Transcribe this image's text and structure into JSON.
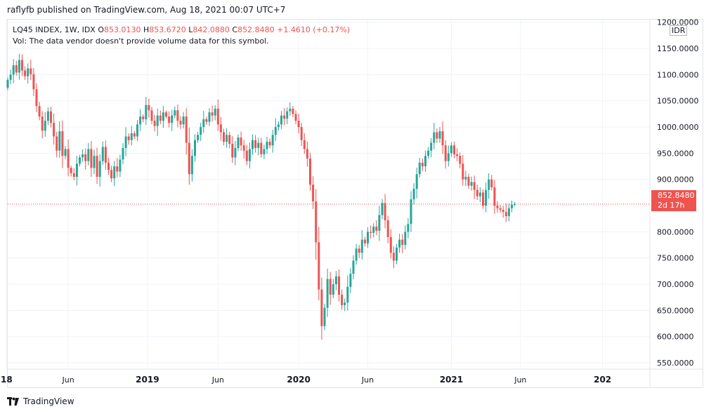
{
  "header": {
    "published_text": "raflyfb published on TradingView.com, Aug 18, 2021 00:07 UTC+7"
  },
  "legend": {
    "symbol": "LQ45 INDEX, 1W, IDX",
    "o_label": "O",
    "o_value": "853.0130",
    "h_label": "H",
    "h_value": "853.6720",
    "l_label": "L",
    "l_value": "842.0880",
    "c_label": "C",
    "c_value": "852.8480",
    "change": "+1.4610 (+0.17%)",
    "volume_note": "Vol: The data vendor doesn't provide volume data for this symbol."
  },
  "price_axis": {
    "currency": "IDR"
  },
  "last_price": {
    "value": "852.8480",
    "countdown": "2d 17h"
  },
  "footer": {
    "brand": "TradingView"
  },
  "colors": {
    "up": "#26a69a",
    "down": "#ef5350",
    "grid": "#f0f3fa",
    "text": "#131722"
  },
  "chart_data": {
    "type": "candlestick",
    "title": "LQ45 INDEX, 1W, IDX",
    "xlabel": "",
    "ylabel": "",
    "ylim": [
      538,
      1205
    ],
    "y_ticks": [
      1200,
      1150,
      1100,
      1050,
      1000,
      950,
      900,
      850,
      800,
      750,
      700,
      650,
      600,
      550
    ],
    "y_tick_labels": [
      "1200.0000",
      "1150.0000",
      "1100.0000",
      "1050.0000",
      "1000.0000",
      "950.0000",
      "900.0000",
      "850.0000",
      "800.0000",
      "750.0000",
      "700.0000",
      "650.0000",
      "600.0000",
      "550.0000"
    ],
    "x_ticks": [
      {
        "index": -0.5,
        "label": "18"
      },
      {
        "index": 21,
        "label": "Jun"
      },
      {
        "index": 48.5,
        "label": "2019"
      },
      {
        "index": 73,
        "label": "Jun"
      },
      {
        "index": 101,
        "label": "2020"
      },
      {
        "index": 125,
        "label": "Jun"
      },
      {
        "index": 154,
        "label": "2021"
      },
      {
        "index": 178,
        "label": "Jun"
      },
      {
        "index": 206.5,
        "label": "202"
      }
    ],
    "last_close": 852.848,
    "grid": true,
    "closes": [
      1090,
      1100,
      1118,
      1104,
      1128,
      1108,
      1097,
      1112,
      1101,
      1072,
      1040,
      1020,
      993,
      1012,
      1030,
      1008,
      982,
      955,
      992,
      945,
      958,
      922,
      912,
      905,
      930,
      942,
      948,
      935,
      958,
      922,
      945,
      905,
      935,
      962,
      932,
      918,
      902,
      925,
      915,
      938,
      960,
      982,
      975,
      988,
      982,
      1005,
      1020,
      1015,
      1042,
      1032,
      1012,
      1002,
      1022,
      1012,
      1028,
      1020,
      1008,
      1022,
      1032,
      1012,
      1005,
      1020,
      970,
      910,
      945,
      975,
      985,
      1000,
      1015,
      1010,
      1028,
      1022,
      1035,
      1005,
      990,
      972,
      985,
      968,
      942,
      960,
      980,
      965,
      955,
      935,
      958,
      975,
      960,
      970,
      948,
      958,
      972,
      965,
      985,
      1000,
      1005,
      1022,
      1016,
      1030,
      1035,
      1025,
      1012,
      1000,
      975,
      958,
      940,
      890,
      858,
      780,
      690,
      620,
      655,
      710,
      680,
      700,
      715,
      680,
      660,
      665,
      695,
      720,
      745,
      768,
      760,
      785,
      778,
      800,
      798,
      810,
      802,
      832,
      855,
      822,
      790,
      760,
      745,
      770,
      785,
      775,
      800,
      815,
      862,
      882,
      910,
      932,
      925,
      945,
      955,
      970,
      990,
      978,
      992,
      965,
      935,
      950,
      965,
      948,
      945,
      930,
      900,
      905,
      888,
      895,
      880,
      868,
      875,
      850,
      880,
      900,
      885,
      850,
      845,
      842,
      838,
      830,
      845,
      852,
      853
    ]
  }
}
